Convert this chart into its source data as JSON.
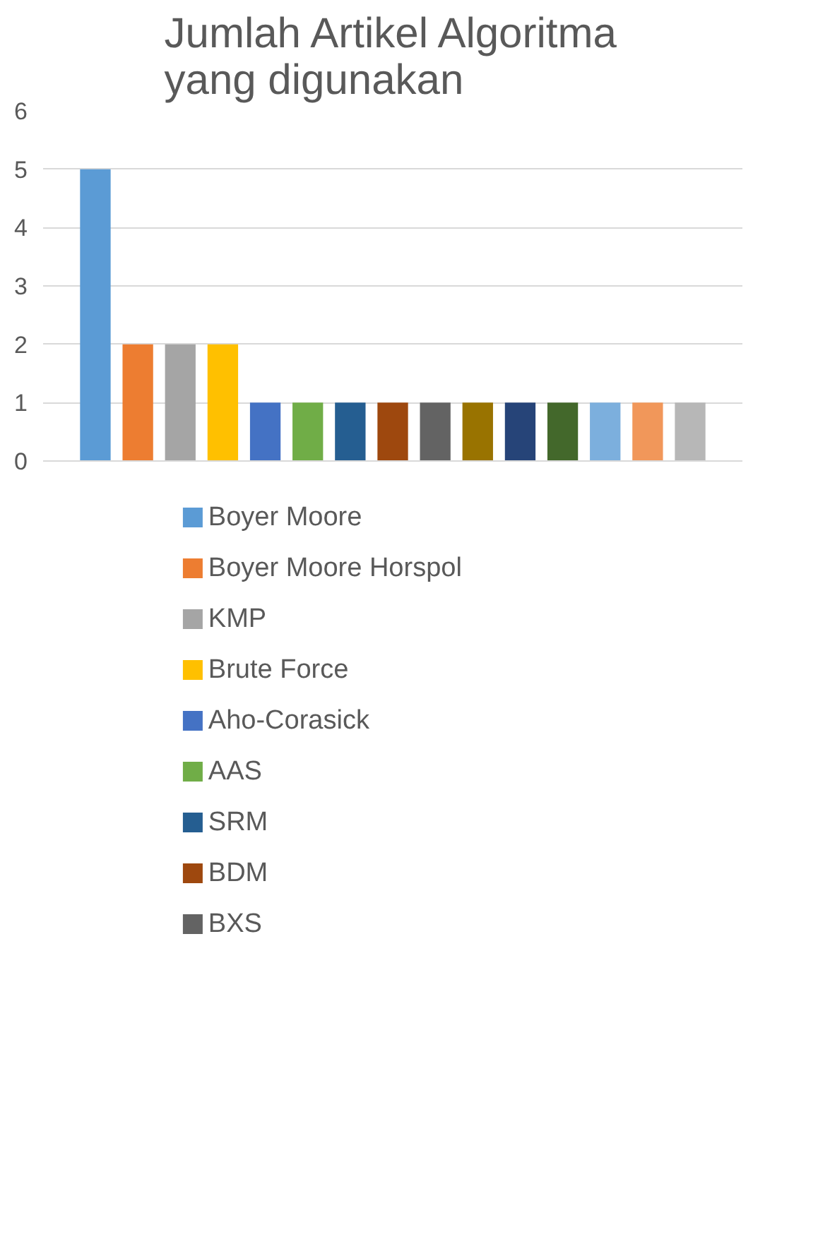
{
  "chart_data": {
    "type": "bar",
    "title": "Jumlah Artikel Algoritma yang digunakan",
    "categories": [
      null
    ],
    "series": [
      {
        "name": "Boyer Moore",
        "color": "#5b9bd5",
        "values": [
          5
        ]
      },
      {
        "name": "Boyer Moore Horspol",
        "color": "#ed7d31",
        "values": [
          2
        ]
      },
      {
        "name": "KMP",
        "color": "#a5a5a5",
        "values": [
          2
        ]
      },
      {
        "name": "Brute Force",
        "color": "#ffc000",
        "values": [
          2
        ]
      },
      {
        "name": "Aho-Corasick",
        "color": "#4472c4",
        "values": [
          1
        ]
      },
      {
        "name": "AAS",
        "color": "#70ad47",
        "values": [
          1
        ]
      },
      {
        "name": "SRM",
        "color": "#255e91",
        "values": [
          1
        ]
      },
      {
        "name": "BDM",
        "color": "#9e480e",
        "values": [
          1
        ]
      },
      {
        "name": "BXS",
        "color": "#636363",
        "values": [
          1
        ]
      },
      {
        "color": "#997300",
        "values": [
          1
        ]
      },
      {
        "color": "#264478",
        "values": [
          1
        ]
      },
      {
        "color": "#43682b",
        "values": [
          1
        ]
      },
      {
        "color": "#7cafdd",
        "values": [
          1
        ]
      },
      {
        "color": "#f1975a",
        "values": [
          1
        ]
      },
      {
        "color": "#b7b7b7",
        "values": [
          1
        ]
      }
    ],
    "ylim": [
      0,
      6
    ],
    "yticks": [
      0,
      1,
      2,
      3,
      4,
      5,
      6
    ],
    "grid": "y",
    "legend": "bottom"
  }
}
